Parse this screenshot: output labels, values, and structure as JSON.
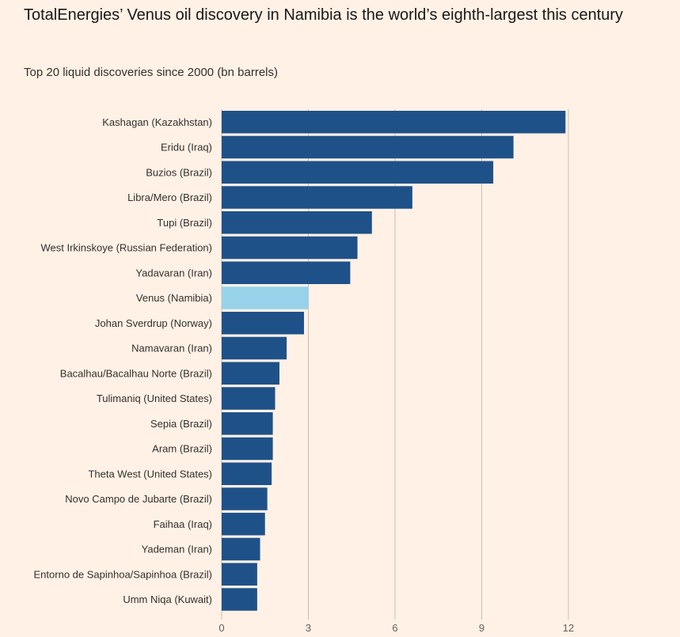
{
  "title": "TotalEnergies’ Venus oil discovery in Namibia is the world’s eighth-largest this century",
  "subtitle": "Top 20 liquid discoveries since 2000 (bn barrels)",
  "colors": {
    "bar": "#1f5189",
    "highlight": "#96d3ea",
    "grid": "#c9bfb6",
    "background": "#fff1e5"
  },
  "chart_data": {
    "type": "bar",
    "orientation": "horizontal",
    "title": "TotalEnergies’ Venus oil discovery in Namibia is the world’s eighth-largest this century",
    "subtitle": "Top 20 liquid discoveries since 2000 (bn barrels)",
    "xlim": [
      0,
      12
    ],
    "xticks": [
      0,
      3,
      6,
      9,
      12
    ],
    "grid": true,
    "highlight": "Venus (Namibia)",
    "categories": [
      "Kashagan (Kazakhstan)",
      "Eridu (Iraq)",
      "Buzios (Brazil)",
      "Libra/Mero (Brazil)",
      "Tupi (Brazil)",
      "West Irkinskoye (Russian Federation)",
      "Yadavaran (Iran)",
      "Venus (Namibia)",
      "Johan Sverdrup (Norway)",
      "Namavaran (Iran)",
      "Bacalhau/Bacalhau Norte (Brazil)",
      "Tulimaniq (United States)",
      "Sepia (Brazil)",
      "Aram (Brazil)",
      "Theta West (United States)",
      "Novo Campo de Jubarte (Brazil)",
      "Faihaa (Iraq)",
      "Yademan (Iran)",
      "Entorno de Sapinhoa/Sapinhoa (Brazil)",
      "Umm Niqa (Kuwait)"
    ],
    "values": [
      11.9,
      10.1,
      9.4,
      6.6,
      5.2,
      4.7,
      4.45,
      3.0,
      2.85,
      2.25,
      2.0,
      1.85,
      1.77,
      1.77,
      1.73,
      1.58,
      1.5,
      1.33,
      1.23,
      1.23
    ]
  }
}
